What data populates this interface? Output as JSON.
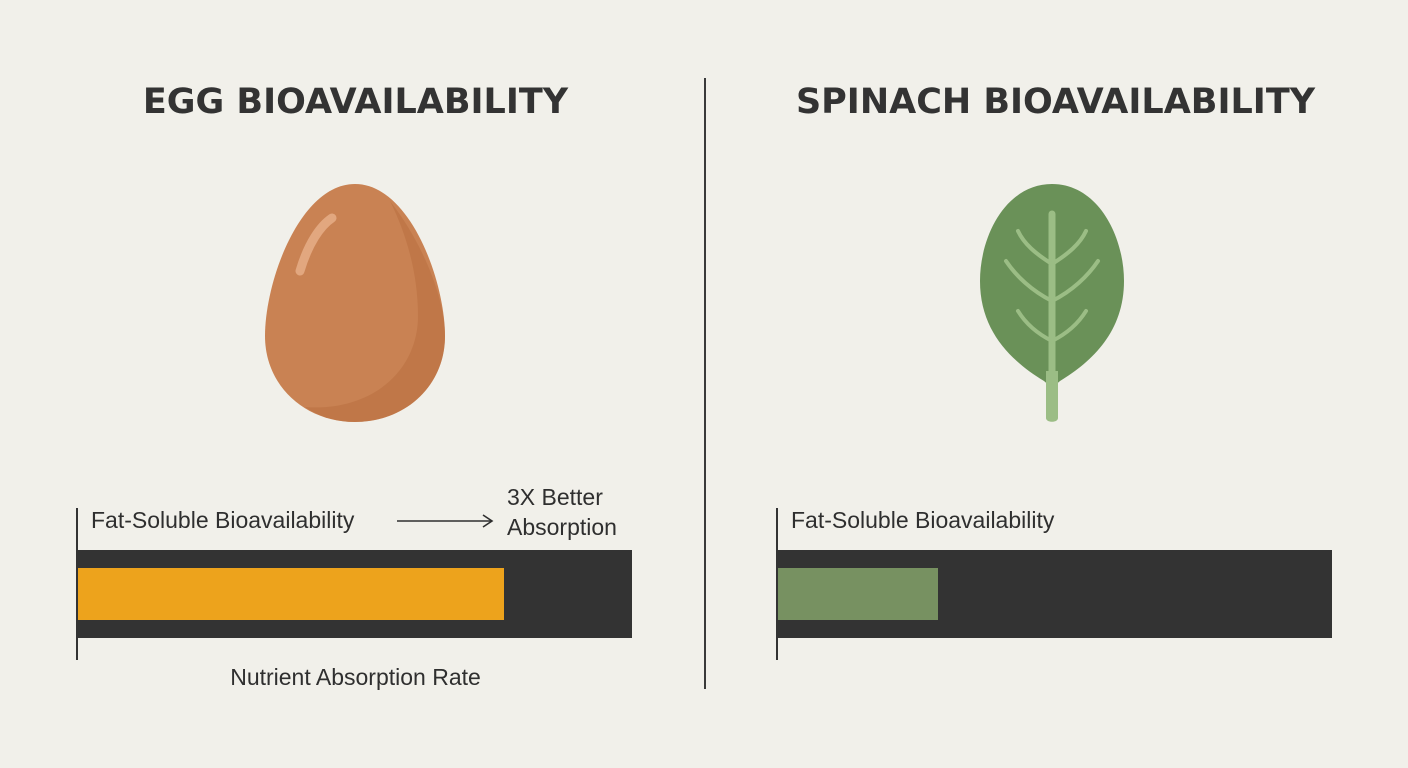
{
  "chart_data": [
    {
      "type": "bar",
      "title": "EGG BIOAVAILABILITY",
      "categories": [
        "Fat-Soluble Bioavailability"
      ],
      "values": [
        0.77
      ],
      "xlim": [
        0,
        1
      ],
      "xlabel": "Nutrient Absorption Rate",
      "annotation": {
        "lines": [
          "3X Better",
          "Absorption"
        ]
      },
      "color": "#eda31c",
      "track_color": "#333333",
      "illustration": "egg-icon"
    },
    {
      "type": "bar",
      "title": "SPINACH BIOAVAILABILITY",
      "categories": [
        "Fat-Soluble Bioavailability"
      ],
      "values": [
        0.29
      ],
      "xlim": [
        0,
        1
      ],
      "color": "#779161",
      "track_color": "#333333",
      "illustration": "spinach-leaf-icon"
    }
  ],
  "colors": {
    "background": "#f1f0ea",
    "text": "#2f2f2f",
    "egg_shell": "#c98253",
    "leaf": "#6a9158"
  }
}
